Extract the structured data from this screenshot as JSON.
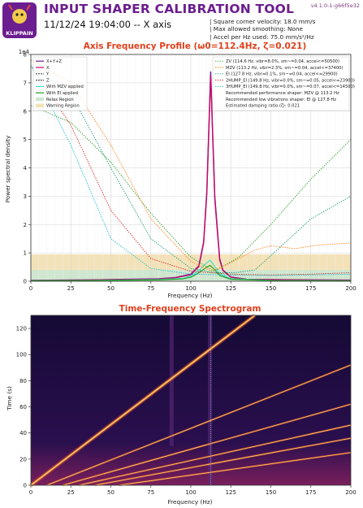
{
  "header": {
    "logo_text": "KLIPPAIN",
    "title": "INPUT SHAPER CALIBRATION TOOL",
    "subtitle": "11/12/24 19:04:00 -- X axis",
    "version": "v4.1.0-1-g66f5e32",
    "info_lines": [
      "| Square corner velocity: 18.0 mm/s",
      "| Max allowed smoothing: None",
      "| Accel per Hz used: 75.0 mm/s²/Hz"
    ]
  },
  "colors": {
    "title": "#6b1e8f",
    "chart_title": "#e0401c",
    "x_y_z": "#6b1e8f",
    "x": "#c40a6a",
    "y": "#555555",
    "z": "#555555",
    "with_mzv": "#40e0d0",
    "with_ei": "#1fa01f",
    "relax_region": "#cfe6cf",
    "warning_region": "#f3e2b8",
    "zv": "#2ca02c",
    "mzv": "#ff7f0e",
    "ei": "#1a9e77",
    "2hump_ei": "#d62728",
    "3hump_ei": "#17becf",
    "accent_line": "#c40a6a",
    "spectrogram_bg": "#0d0829",
    "spectrogram_line": "#f7c25a",
    "marker": "#7fd6e8"
  },
  "chart_data": [
    {
      "type": "line",
      "title": "Axis Frequency Profile (ω0=112.4Hz, ζ=0.021)",
      "xlabel": "Frequency (Hz)",
      "ylabel": "Power spectral density",
      "y_offset_label": "1e4",
      "xlim": [
        0,
        200
      ],
      "ylim": [
        0,
        80000
      ],
      "x_ticks": [
        "0",
        "25",
        "50",
        "75",
        "100",
        "125",
        "150",
        "175",
        "200"
      ],
      "y_ticks": [
        "0",
        "1",
        "2",
        "3",
        "4",
        "5",
        "6",
        "7",
        "8"
      ],
      "grid": true,
      "legend_left": [
        "X+Y+Z",
        "X",
        "Y",
        "Z",
        "With MZV applied",
        "With EI applied",
        "Relax Region",
        "Warning Region"
      ],
      "legend_right": [
        "ZV (114.6 Hz, vibr=8.0%, sm~=0.04, accel<=50500)",
        "MZV (113.2 Hz, vibr=2.3%, sm~=0.04, accel<=37400)",
        "EI (127.8 Hz, vibr=0.1%, sm~=0.04, accel<=29900)",
        "2HUMP_EI (149.8 Hz, vibr=0.0%, sm~=0.05, accel<=23900)",
        "3HUMP_EI (149.8 Hz, vibr=0.0%, sm~=0.07, accel<=14500)",
        "Recommended performance shaper: MZV @ 113.2 Hz",
        "Recommended low vibrations shaper: EI @ 127.8 Hz",
        "Estimated damping ratio (ζ): 0.021"
      ],
      "relax_region_max": 4000,
      "warning_region_max": 9500,
      "series": [
        {
          "name": "X+Y+Z",
          "x": [
            0,
            20,
            40,
            60,
            80,
            90,
            100,
            105,
            108,
            110,
            112.4,
            115,
            118,
            120,
            125,
            135,
            150,
            175,
            200
          ],
          "y": [
            300,
            400,
            500,
            700,
            900,
            1300,
            2500,
            5500,
            14000,
            32000,
            74000,
            30000,
            8000,
            4000,
            1500,
            700,
            600,
            500,
            400
          ]
        },
        {
          "name": "X",
          "x": [
            0,
            20,
            40,
            60,
            80,
            90,
            100,
            105,
            108,
            110,
            112.4,
            115,
            118,
            120,
            125,
            135,
            150,
            175,
            200
          ],
          "y": [
            250,
            350,
            450,
            600,
            800,
            1200,
            2300,
            5200,
            13500,
            31000,
            72500,
            29000,
            7500,
            3800,
            1400,
            650,
            550,
            450,
            350
          ]
        },
        {
          "name": "With MZV applied",
          "x": [
            0,
            40,
            80,
            95,
            100,
            105,
            110,
            112,
            114,
            118,
            125,
            150,
            200
          ],
          "y": [
            200,
            300,
            600,
            1000,
            1800,
            3800,
            6500,
            7400,
            6000,
            2600,
            900,
            300,
            200
          ]
        },
        {
          "name": "With EI applied",
          "x": [
            0,
            40,
            80,
            95,
            100,
            105,
            110,
            112,
            114,
            118,
            125,
            150,
            200
          ],
          "y": [
            150,
            250,
            450,
            800,
            1400,
            3000,
            5000,
            5600,
            4600,
            2000,
            700,
            250,
            150
          ]
        },
        {
          "name": "ZV (114.6 Hz, vibr=8.0%, sm~=0.04, accel<=50500)",
          "x": [
            0,
            25,
            50,
            75,
            100,
            114.6,
            130,
            150,
            175,
            200
          ],
          "y": [
            62000,
            56000,
            42000,
            24000,
            8500,
            3500,
            8500,
            20000,
            36000,
            50000
          ]
        },
        {
          "name": "MZV (113.2 Hz, vibr=2.3%, sm~=0.04, accel<=37400)",
          "x": [
            0,
            25,
            50,
            75,
            100,
            113.2,
            125,
            140,
            150,
            165,
            180,
            200
          ],
          "y": [
            78000,
            70000,
            48000,
            22000,
            7000,
            3500,
            6500,
            11000,
            12500,
            11500,
            12800,
            13500
          ]
        },
        {
          "name": "EI (127.8 Hz, vibr=0.1%, sm~=0.04, accel<=29900)",
          "x": [
            0,
            25,
            50,
            75,
            100,
            115,
            127.8,
            140,
            150,
            175,
            200
          ],
          "y": [
            76000,
            66000,
            40000,
            15000,
            4500,
            3000,
            3000,
            4000,
            9000,
            22000,
            30000
          ]
        },
        {
          "name": "2HUMP_EI (149.8 Hz, vibr=0.0%, sm~=0.05, accel<=23900)",
          "x": [
            0,
            25,
            50,
            75,
            100,
            125,
            149.8,
            175,
            200
          ],
          "y": [
            76000,
            55000,
            25000,
            8000,
            3500,
            2500,
            2200,
            2500,
            3000
          ]
        },
        {
          "name": "3HUMP_EI (149.8 Hz, vibr=0.0%, sm~=0.07, accel<=14500)",
          "x": [
            0,
            25,
            50,
            75,
            100,
            125,
            149.8,
            175,
            200
          ],
          "y": [
            76000,
            48000,
            15000,
            4500,
            2500,
            2200,
            2000,
            2200,
            2500
          ]
        }
      ],
      "annotations": [
        {
          "text": "Recommended performance shaper: MZV @ 113.2 Hz",
          "x": 113.2
        },
        {
          "text": "Recommended low vibrations shaper: EI @ 127.8 Hz",
          "x": 127.8
        }
      ]
    },
    {
      "type": "heatmap",
      "title": "Time-Frequency Spectrogram",
      "xlabel": "Frequency (Hz)",
      "ylabel": "Time (s)",
      "xlim": [
        0,
        200
      ],
      "ylim": [
        0,
        130
      ],
      "x_ticks": [
        "0",
        "25",
        "50",
        "75",
        "100",
        "125",
        "150",
        "175",
        "200"
      ],
      "y_ticks": [
        "0",
        "20",
        "40",
        "60",
        "80",
        "100",
        "120"
      ],
      "marker_frequency": 112.4,
      "harmonic_lines": [
        {
          "x": [
            0,
            140
          ],
          "y": [
            0,
            130
          ]
        },
        {
          "x": [
            10,
            200
          ],
          "y": [
            0,
            92
          ]
        },
        {
          "x": [
            20,
            200
          ],
          "y": [
            0,
            62
          ]
        },
        {
          "x": [
            30,
            200
          ],
          "y": [
            0,
            46
          ]
        },
        {
          "x": [
            40,
            200
          ],
          "y": [
            0,
            36
          ]
        },
        {
          "x": [
            55,
            200
          ],
          "y": [
            0,
            25
          ]
        }
      ],
      "vertical_bands": [
        {
          "x": 88,
          "y": [
            30,
            130
          ]
        },
        {
          "x": 112,
          "y": [
            0,
            130
          ]
        }
      ]
    }
  ]
}
